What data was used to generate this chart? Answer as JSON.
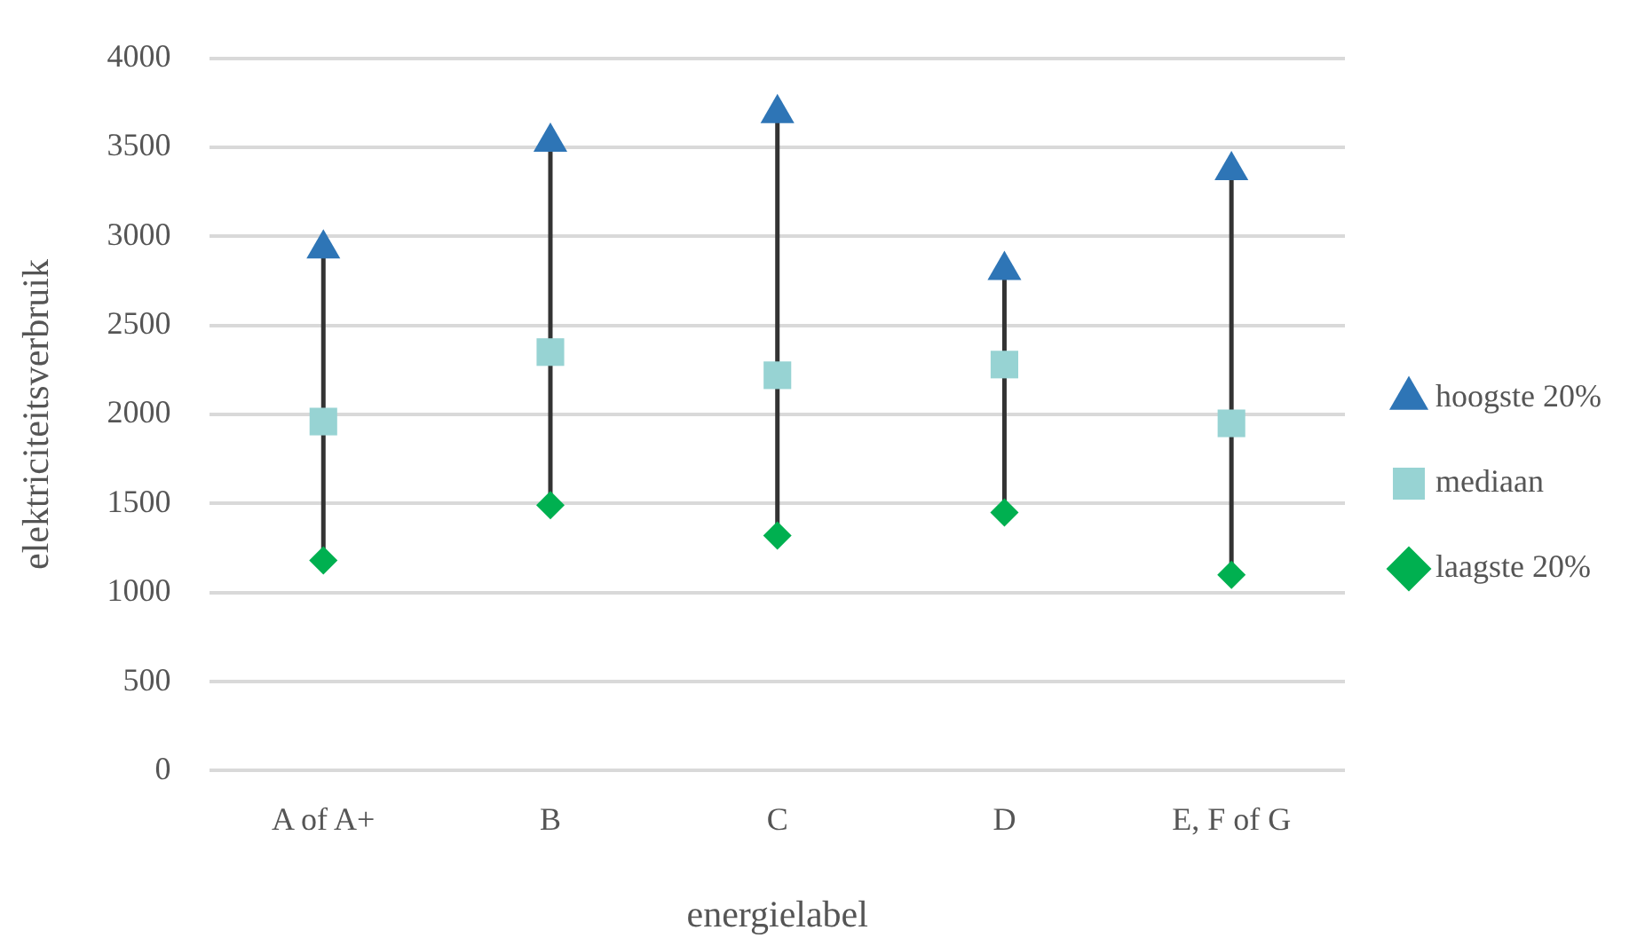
{
  "chart_data": {
    "type": "scatter",
    "xlabel": "energielabel",
    "ylabel": "elektriciteitsverbruik",
    "categories": [
      "A of A+",
      "B",
      "C",
      "D",
      "E, F of G"
    ],
    "series": [
      {
        "name": "hoogste 20%",
        "color": "#2e75b6",
        "marker": "triangle",
        "values": [
          2930,
          3530,
          3690,
          2810,
          3370
        ]
      },
      {
        "name": "mediaan",
        "color": "#97d3d3",
        "marker": "square",
        "values": [
          1960,
          2350,
          2220,
          2280,
          1950
        ]
      },
      {
        "name": "laagste 20%",
        "color": "#00b050",
        "marker": "diamond",
        "values": [
          1180,
          1490,
          1320,
          1450,
          1100
        ]
      }
    ],
    "ylim": [
      0,
      4000
    ],
    "yticks": [
      0,
      500,
      1000,
      1500,
      2000,
      2500,
      3000,
      3500,
      4000
    ],
    "grid": "y",
    "legend": "right"
  }
}
